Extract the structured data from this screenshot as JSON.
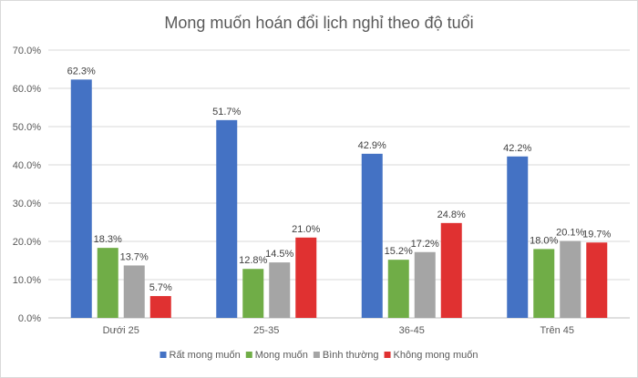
{
  "chart_data": {
    "type": "bar",
    "title": "Mong muốn hoán đổi lịch nghỉ theo độ tuổi",
    "xlabel": "",
    "ylabel": "",
    "categories": [
      "Dưới 25",
      "25-35",
      "36-45",
      "Trên 45"
    ],
    "series": [
      {
        "name": "Rất mong muốn",
        "color": "#4472C4",
        "values": [
          62.3,
          51.7,
          42.9,
          42.2
        ],
        "labels": [
          "62.3%",
          "51.7%",
          "42.9%",
          "42.2%"
        ]
      },
      {
        "name": "Mong muốn",
        "color": "#70AD47",
        "values": [
          18.3,
          12.8,
          15.2,
          18.0
        ],
        "labels": [
          "18.3%",
          "12.8%",
          "15.2%",
          "18.0%"
        ]
      },
      {
        "name": "Bình thường",
        "color": "#A5A5A5",
        "values": [
          13.7,
          14.5,
          17.2,
          20.1
        ],
        "labels": [
          "13.7%",
          "14.5%",
          "17.2%",
          "20.1%"
        ]
      },
      {
        "name": "Không mong muốn",
        "color": "#E03131",
        "values": [
          5.7,
          21.0,
          24.8,
          19.7
        ],
        "labels": [
          "5.7%",
          "21.0%",
          "24.8%",
          "19.7%"
        ]
      }
    ],
    "ylim": [
      0,
      70
    ],
    "yticks": [
      0,
      10,
      20,
      30,
      40,
      50,
      60,
      70
    ],
    "ytick_labels": [
      "0.0%",
      "10.0%",
      "20.0%",
      "30.0%",
      "40.0%",
      "50.0%",
      "60.0%",
      "70.0%"
    ],
    "grid": true,
    "legend_position": "bottom"
  }
}
